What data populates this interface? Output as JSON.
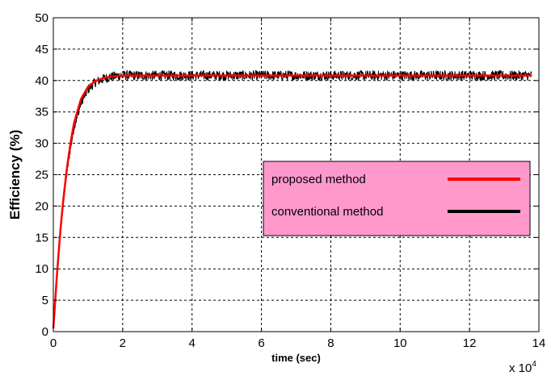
{
  "chart_data": {
    "type": "line",
    "xlabel": "time (sec)",
    "ylabel": "Efficiency (%)",
    "x_multiplier_label": "x 10",
    "x_multiplier_exponent": "4",
    "xlim": [
      0,
      14
    ],
    "ylim": [
      0,
      50
    ],
    "x_ticks": [
      "0",
      "2",
      "4",
      "6",
      "8",
      "10",
      "12",
      "14"
    ],
    "y_ticks": [
      "0",
      "5",
      "10",
      "15",
      "20",
      "25",
      "30",
      "35",
      "40",
      "45",
      "50"
    ],
    "grid": true,
    "legend_position": "middle-right",
    "legend_background": "#ff99cc",
    "series": [
      {
        "name": "proposed method",
        "color": "#ff0000",
        "x": [
          0,
          0.05,
          0.1,
          0.2,
          0.3,
          0.4,
          0.5,
          0.6,
          0.8,
          1.0,
          1.2,
          1.5,
          1.8,
          2.0,
          2.5,
          3.0,
          4.0,
          6.0,
          8.0,
          10.0,
          12.0,
          13.8
        ],
        "y": [
          0.5,
          4.5,
          8.7,
          15.9,
          21.7,
          26.4,
          30.2,
          33.3,
          37.1,
          39.0,
          39.9,
          40.5,
          40.7,
          40.8,
          40.8,
          40.8,
          40.8,
          40.8,
          40.8,
          40.8,
          40.8,
          40.8
        ]
      },
      {
        "name": "conventional method",
        "color": "#000000",
        "x": [
          0,
          0.05,
          0.1,
          0.2,
          0.3,
          0.4,
          0.5,
          0.6,
          0.8,
          1.0,
          1.2,
          1.5,
          1.8,
          2.0,
          2.5,
          3.0,
          4.0,
          6.0,
          8.0,
          10.0,
          12.0,
          13.8
        ],
        "y": [
          0.5,
          4.3,
          8.3,
          15.2,
          20.9,
          25.5,
          29.3,
          32.5,
          36.4,
          38.6,
          39.7,
          40.4,
          40.7,
          40.8,
          40.8,
          40.8,
          40.8,
          40.8,
          40.8,
          40.8,
          40.8,
          40.8
        ],
        "noise_amplitude": 0.8
      }
    ]
  }
}
